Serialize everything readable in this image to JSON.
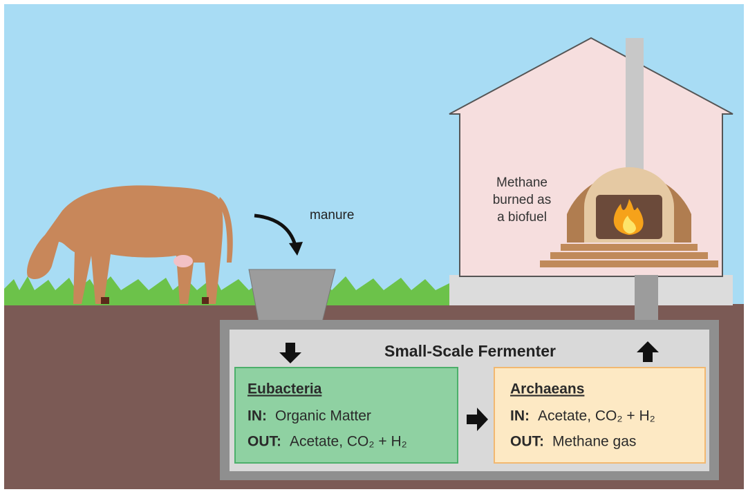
{
  "manure_label": "manure",
  "house_label": [
    "Methane",
    "burned as",
    "a biofuel"
  ],
  "fermenter": {
    "title": "Small-Scale Fermenter",
    "boxes": [
      {
        "title": "Eubacteria",
        "lines": [
          {
            "key": "IN:",
            "text": "Organic Matter"
          },
          {
            "key": "OUT:",
            "text": "Acetate, CO₂ + H₂"
          }
        ]
      },
      {
        "title": "Archaeans",
        "lines": [
          {
            "key": "IN:",
            "text": "Acetate, CO₂ + H₂"
          },
          {
            "key": "OUT:",
            "text": "Methane gas"
          }
        ]
      }
    ]
  }
}
